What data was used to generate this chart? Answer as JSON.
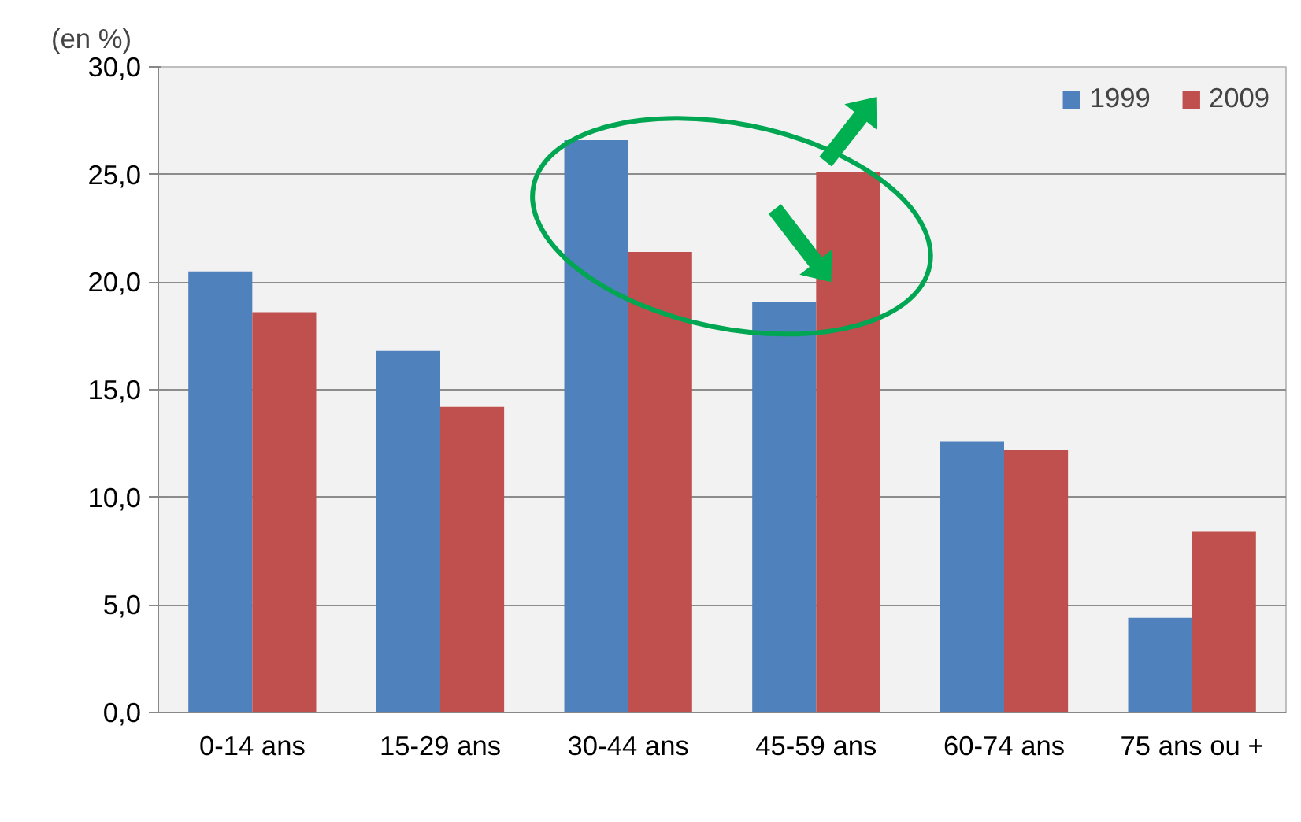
{
  "chart_data": {
    "type": "bar",
    "ylabel": "(en %)",
    "categories": [
      "0-14 ans",
      "15-29 ans",
      "30-44 ans",
      "45-59 ans",
      "60-74 ans",
      "75 ans ou +"
    ],
    "series": [
      {
        "name": "1999",
        "color": "#4f81bd",
        "values": [
          20.5,
          16.8,
          26.6,
          19.1,
          12.6,
          4.4
        ]
      },
      {
        "name": "2009",
        "color": "#c0504d",
        "values": [
          18.6,
          14.2,
          21.4,
          25.1,
          12.2,
          8.4
        ]
      }
    ],
    "ylim": [
      0,
      30
    ],
    "yticks": [
      {
        "value": 0,
        "label": "0,0"
      },
      {
        "value": 5,
        "label": "5,0"
      },
      {
        "value": 10,
        "label": "10,0"
      },
      {
        "value": 15,
        "label": "15,0"
      },
      {
        "value": 20,
        "label": "20,0"
      },
      {
        "value": 25,
        "label": "25,0"
      },
      {
        "value": 30,
        "label": "30,0"
      }
    ],
    "grid": "y",
    "legend": "top right"
  }
}
